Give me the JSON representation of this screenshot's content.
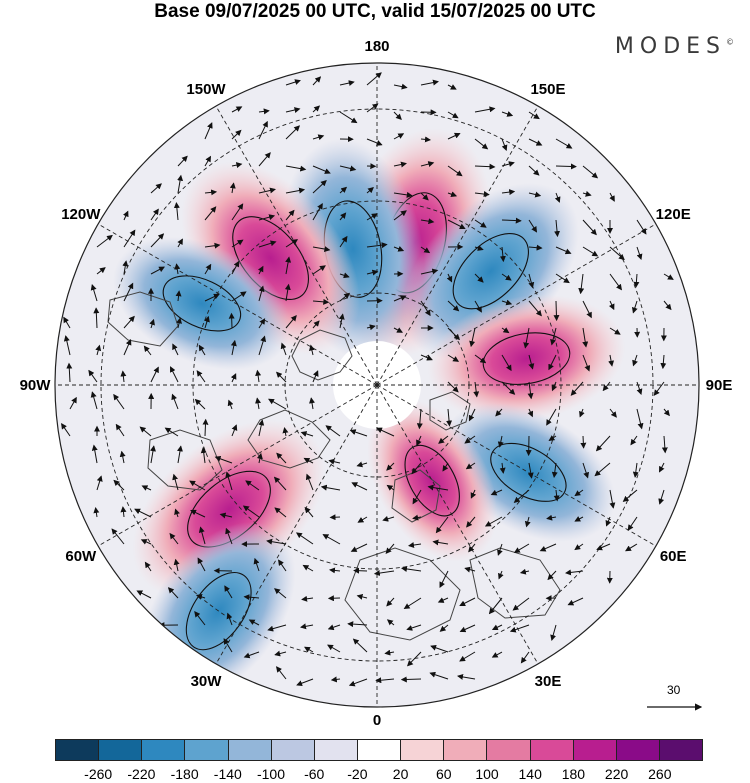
{
  "header": {
    "title": "Base 09/07/2025 00 UTC, valid 15/07/2025 00 UTC",
    "brand": "MODES",
    "brand_mark": "©"
  },
  "map": {
    "projection": "north-polar-stereographic",
    "longitude_labels": [
      {
        "id": "lon-180",
        "text": "180",
        "lon": 180
      },
      {
        "id": "lon-150e",
        "text": "150E",
        "lon": 150
      },
      {
        "id": "lon-120e",
        "text": "120E",
        "lon": 120
      },
      {
        "id": "lon-90e",
        "text": "90E",
        "lon": 90
      },
      {
        "id": "lon-60e",
        "text": "60E",
        "lon": 60
      },
      {
        "id": "lon-30e",
        "text": "30E",
        "lon": 30
      },
      {
        "id": "lon-0",
        "text": "0",
        "lon": 0
      },
      {
        "id": "lon-30w",
        "text": "30W",
        "lon": -30
      },
      {
        "id": "lon-60w",
        "text": "60W",
        "lon": -60
      },
      {
        "id": "lon-90w",
        "text": "90W",
        "lon": -90
      },
      {
        "id": "lon-120w",
        "text": "120W",
        "lon": -120
      },
      {
        "id": "lon-150w",
        "text": "150W",
        "lon": -150
      }
    ],
    "anomaly_centers": [
      {
        "sign": "positive",
        "lon": 165,
        "colat": 32,
        "value": 240
      },
      {
        "sign": "negative",
        "lon": -170,
        "colat": 30,
        "value": -220
      },
      {
        "sign": "negative",
        "lon": 135,
        "colat": 35,
        "value": -200
      },
      {
        "sign": "positive",
        "lon": -140,
        "colat": 36,
        "value": 220
      },
      {
        "sign": "negative",
        "lon": -115,
        "colat": 42,
        "value": -160
      },
      {
        "sign": "positive",
        "lon": 100,
        "colat": 33,
        "value": 180
      },
      {
        "sign": "negative",
        "lon": 60,
        "colat": 38,
        "value": -160
      },
      {
        "sign": "positive",
        "lon": -50,
        "colat": 42,
        "value": 220
      },
      {
        "sign": "positive",
        "lon": 30,
        "colat": 24,
        "value": 140
      },
      {
        "sign": "negative",
        "lon": -35,
        "colat": 60,
        "value": -180
      }
    ],
    "reference_vector": {
      "label": "30"
    }
  },
  "colorbar": {
    "ticks": [
      "-260",
      "-220",
      "-180",
      "-140",
      "-100",
      "-60",
      "-20",
      "20",
      "60",
      "100",
      "140",
      "180",
      "220",
      "260"
    ],
    "colors": [
      "#0d3a5c",
      "#13679a",
      "#2e88bf",
      "#5ea3cf",
      "#93b6d9",
      "#bcc8e2",
      "#e2e2ef",
      "#ffffff",
      "#f6d3d6",
      "#f0adb9",
      "#e47ba2",
      "#d94a98",
      "#b81e8f",
      "#8a0b88",
      "#5b0d6e"
    ]
  }
}
